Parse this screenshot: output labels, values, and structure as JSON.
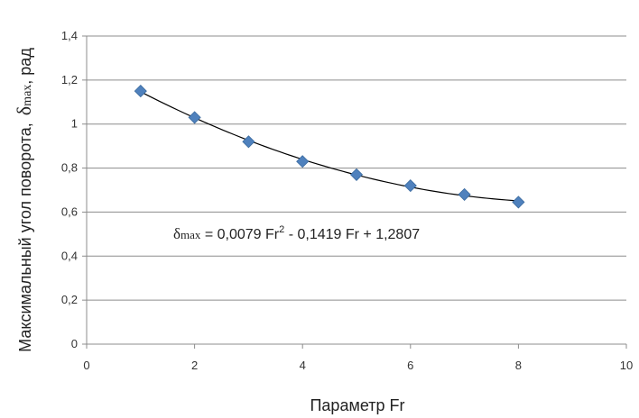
{
  "chart_data": {
    "type": "scatter",
    "xlabel": "Параметр Fr",
    "ylabel": {
      "text": "Максимальный угол поворота,",
      "symbol": "δ",
      "subscript": "max",
      "unit": ", рад"
    },
    "xlim": [
      0,
      10
    ],
    "ylim": [
      0,
      1.4
    ],
    "x_ticks": [
      "0",
      "2",
      "4",
      "6",
      "8",
      "10"
    ],
    "y_ticks": [
      "0",
      "0,2",
      "0,4",
      "0,6",
      "0,8",
      "1",
      "1,2",
      "1,4"
    ],
    "grid": "horizontal",
    "points": {
      "x": [
        1,
        2,
        3,
        4,
        5,
        6,
        7,
        8
      ],
      "y": [
        1.15,
        1.03,
        0.92,
        0.83,
        0.77,
        0.72,
        0.68,
        0.645
      ],
      "color": "#4F81BD",
      "marker": "diamond"
    },
    "trendline": {
      "type": "polynomial",
      "coefficients": [
        0.0079,
        -0.1419,
        1.2807
      ],
      "x_range": [
        1,
        8
      ],
      "color": "#000000",
      "equation": {
        "symbol": "δ",
        "subscript": "max",
        "part1": " = 0,0079 Fr",
        "sup": "2",
        "part2": " - 0,1419 Fr + 1,2807"
      }
    }
  }
}
